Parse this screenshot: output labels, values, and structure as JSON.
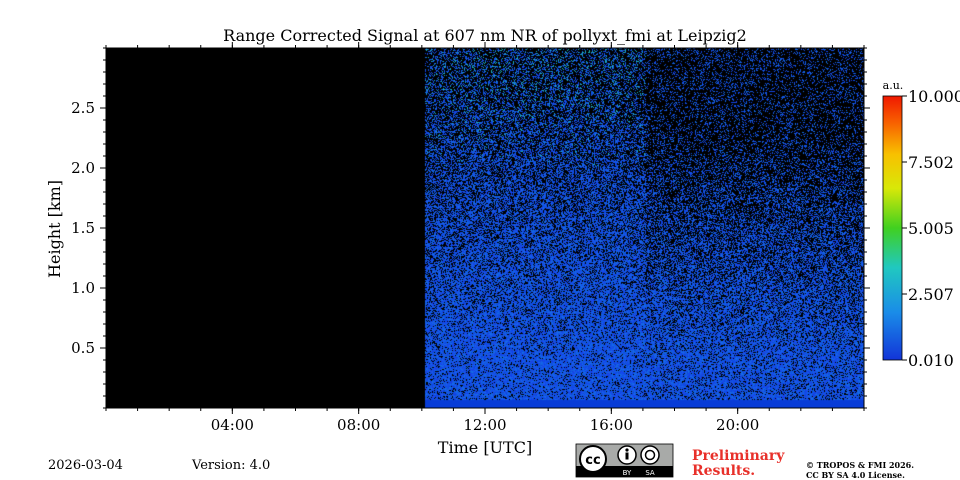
{
  "chart_data": {
    "type": "heatmap",
    "title": "Range Corrected Signal at 607 nm NR of pollyxt_fmi at Leipzig2",
    "xlabel": "Time [UTC]",
    "ylabel": "Height [km]",
    "xlim_hours": [
      0,
      24
    ],
    "ylim_km": [
      0,
      3.0
    ],
    "x_ticks": [
      {
        "hour": 4,
        "label": "04:00"
      },
      {
        "hour": 8,
        "label": "08:00"
      },
      {
        "hour": 12,
        "label": "12:00"
      },
      {
        "hour": 16,
        "label": "16:00"
      },
      {
        "hour": 20,
        "label": "20:00"
      }
    ],
    "y_ticks": [
      {
        "km": 0.5,
        "label": "0.5"
      },
      {
        "km": 1.0,
        "label": "1.0"
      },
      {
        "km": 1.5,
        "label": "1.5"
      },
      {
        "km": 2.0,
        "label": "2.0"
      },
      {
        "km": 2.5,
        "label": "2.5"
      }
    ],
    "no_data_until_hour": 10.1,
    "signal_regimes": [
      {
        "start_hour": 10.1,
        "end_hour": 17.1,
        "description": "noisier, stronger signal aloft"
      },
      {
        "start_hour": 17.1,
        "end_hour": 24.0,
        "description": "sparser signal aloft"
      }
    ],
    "colorbar": {
      "unit": "a.u.",
      "min": 0.01,
      "max": 10.0,
      "tick_labels": [
        "0.010",
        "2.507",
        "5.005",
        "7.502",
        "10.000"
      ],
      "colors": [
        "#0a10a0",
        "#1640e6",
        "#1a8ce8",
        "#20c8c0",
        "#3ad030",
        "#c8e010",
        "#f8e000",
        "#f89000",
        "#f03000",
        "#d01000"
      ]
    }
  },
  "footer": {
    "date": "2026-03-04",
    "version": "Version: 4.0",
    "license_badge": {
      "cc": "cc",
      "by": "BY",
      "sa": "SA"
    },
    "preliminary_line1": "Preliminary",
    "preliminary_line2": "Results.",
    "copyright_line1": "© TROPOS & FMI 2026.",
    "copyright_line2": "CC BY SA 4.0 License."
  }
}
